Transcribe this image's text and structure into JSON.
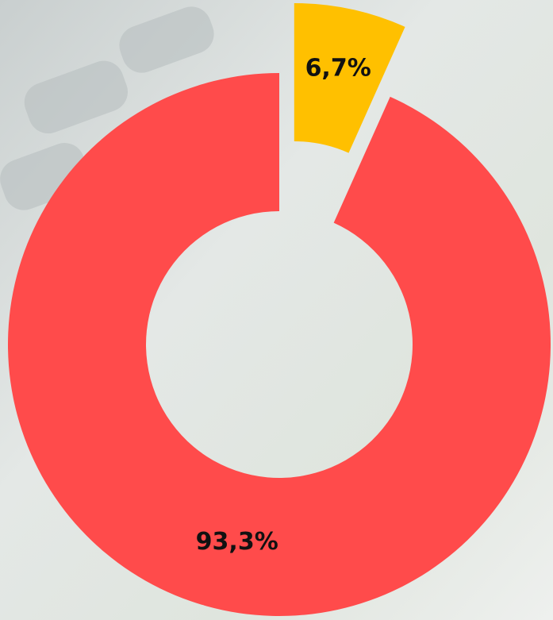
{
  "chart_data": {
    "type": "donut",
    "values": [
      6.7,
      93.3
    ],
    "value_labels": [
      "6,7%",
      "93,3%"
    ],
    "colors": [
      "#ffc000",
      "#ff4b4b"
    ]
  }
}
